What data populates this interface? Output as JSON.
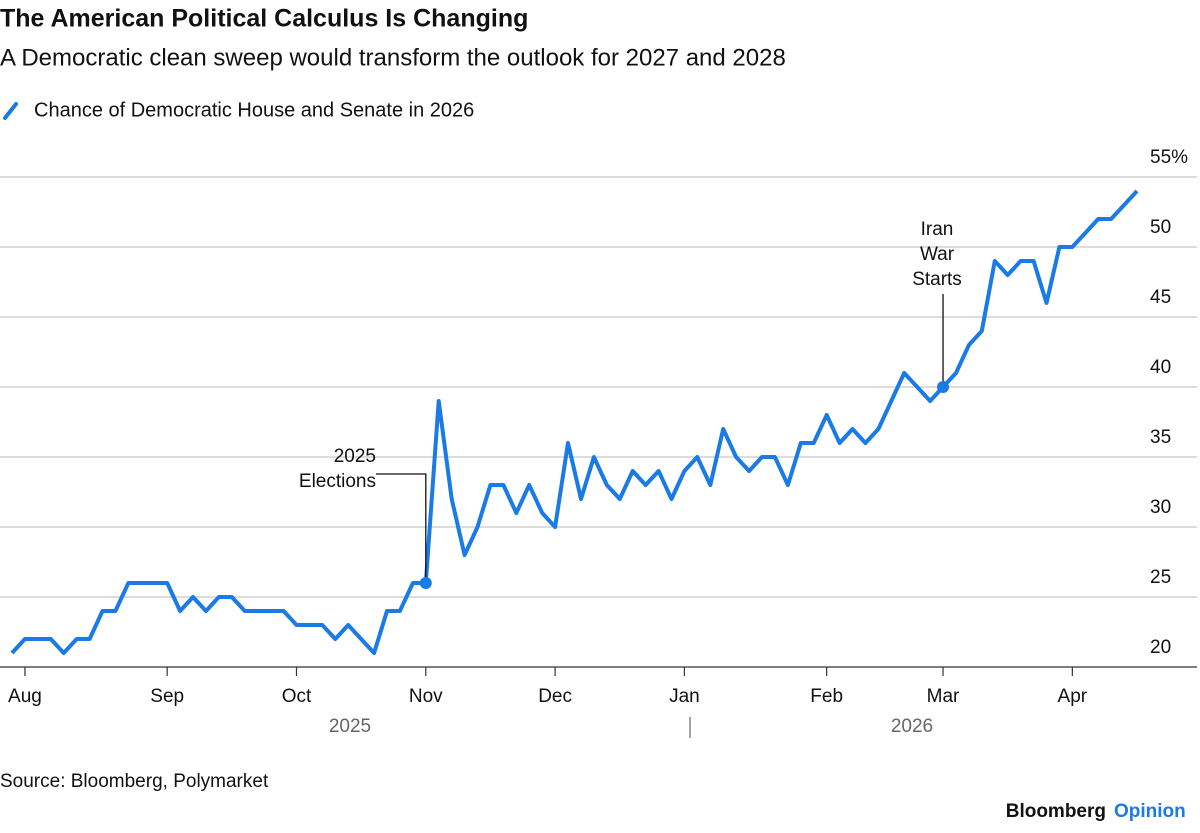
{
  "chart_data": {
    "type": "line",
    "title": "The American Political Calculus Is Changing",
    "subtitle": "A Democratic clean sweep would transform the outlook for 2027 and 2028",
    "categories": [
      null,
      "Aug",
      null,
      null,
      null,
      null,
      null,
      null,
      null,
      null,
      null,
      null,
      "Sep",
      null,
      null,
      null,
      null,
      null,
      null,
      null,
      null,
      null,
      "Oct",
      null,
      null,
      null,
      null,
      null,
      null,
      null,
      null,
      null,
      "Nov",
      null,
      null,
      null,
      null,
      null,
      null,
      null,
      null,
      null,
      "Dec",
      null,
      null,
      null,
      null,
      null,
      null,
      null,
      null,
      null,
      "Jan",
      null,
      null,
      null,
      null,
      null,
      null,
      null,
      null,
      null,
      null,
      "Feb",
      null,
      null,
      null,
      null,
      null,
      null,
      null,
      null,
      "Mar",
      null,
      null,
      null,
      null,
      null,
      null,
      null,
      null,
      null,
      "Apr",
      null,
      null,
      null,
      null,
      null
    ],
    "year_labels": [
      "2025",
      "2026"
    ],
    "series": [
      {
        "name": "Chance of Democratic House and Senate in 2026",
        "color": "#1a7ae6",
        "values": [
          21,
          22,
          22,
          22,
          21,
          22,
          22,
          24,
          24,
          26,
          26,
          26,
          26,
          24,
          25,
          24,
          25,
          25,
          24,
          24,
          24,
          24,
          23,
          23,
          23,
          22,
          23,
          22,
          21,
          24,
          24,
          26,
          26,
          39,
          32,
          28,
          30,
          33,
          33,
          31,
          33,
          31,
          30,
          36,
          32,
          35,
          33,
          32,
          34,
          33,
          34,
          32,
          34,
          35,
          33,
          37,
          35,
          34,
          35,
          35,
          33,
          36,
          36,
          38,
          36,
          37,
          36,
          37,
          39,
          41,
          40,
          39,
          40,
          41,
          43,
          44,
          49,
          48,
          49,
          49,
          46,
          50,
          50,
          51,
          52,
          52,
          53,
          54
        ]
      }
    ],
    "ylim": [
      20,
      55
    ],
    "yticks": [
      20,
      25,
      30,
      35,
      40,
      45,
      50,
      {
        "value": 55,
        "label": "55%"
      }
    ],
    "grid": true,
    "annotations": [
      {
        "text": "2025 Elections"
      },
      {
        "text": "Iran War Starts"
      }
    ],
    "source": "Source: Bloomberg, Polymarket",
    "brand": [
      "Bloomberg",
      "Opinion"
    ]
  }
}
